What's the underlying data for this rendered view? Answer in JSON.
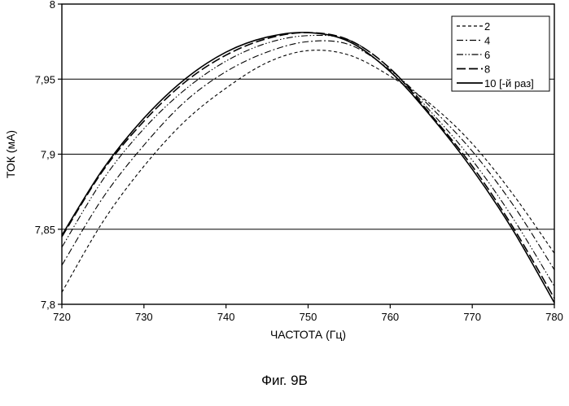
{
  "chart_data": {
    "type": "line",
    "title": "",
    "xlabel": "ЧАСТОТА (Гц)",
    "ylabel": "ТОК (мА)",
    "xlim": [
      720,
      780
    ],
    "ylim": [
      7.8,
      8.0
    ],
    "xticks": [
      720,
      730,
      740,
      750,
      760,
      770,
      780
    ],
    "xtick_labels": [
      "720",
      "730",
      "740",
      "750",
      "760",
      "770",
      "780"
    ],
    "yticks": [
      7.8,
      7.85,
      7.9,
      7.95,
      8.0
    ],
    "ytick_labels": [
      "7,8",
      "7,85",
      "7,9",
      "7,95",
      "8"
    ],
    "grid": "horizontal",
    "legend_position": "top-right",
    "series": [
      {
        "name": "2",
        "style": "dashed",
        "x": [
          720,
          725,
          730,
          735,
          740,
          745,
          750,
          755,
          760,
          765,
          770,
          775,
          780
        ],
        "y": [
          7.808,
          7.855,
          7.892,
          7.922,
          7.944,
          7.961,
          7.969,
          7.966,
          7.952,
          7.933,
          7.907,
          7.873,
          7.834
        ]
      },
      {
        "name": "4",
        "style": "dash-dot",
        "x": [
          720,
          725,
          730,
          735,
          740,
          745,
          750,
          755,
          760,
          765,
          770,
          775,
          780
        ],
        "y": [
          7.826,
          7.871,
          7.906,
          7.935,
          7.955,
          7.968,
          7.975,
          7.973,
          7.956,
          7.931,
          7.902,
          7.866,
          7.823
        ]
      },
      {
        "name": "6",
        "style": "dash-dot-dot",
        "x": [
          720,
          725,
          730,
          735,
          740,
          745,
          750,
          755,
          760,
          765,
          770,
          775,
          780
        ],
        "y": [
          7.838,
          7.883,
          7.917,
          7.943,
          7.962,
          7.974,
          7.979,
          7.976,
          7.957,
          7.928,
          7.896,
          7.857,
          7.812
        ]
      },
      {
        "name": "8",
        "style": "long-dash",
        "x": [
          720,
          725,
          730,
          735,
          740,
          745,
          750,
          755,
          760,
          765,
          770,
          775,
          780
        ],
        "y": [
          7.845,
          7.889,
          7.922,
          7.948,
          7.966,
          7.977,
          7.981,
          7.976,
          7.957,
          7.926,
          7.892,
          7.851,
          7.804
        ]
      },
      {
        "name": "10 [-й раз]",
        "style": "solid",
        "x": [
          720,
          725,
          730,
          735,
          740,
          745,
          750,
          755,
          760,
          765,
          770,
          775,
          780
        ],
        "y": [
          7.846,
          7.89,
          7.924,
          7.95,
          7.968,
          7.978,
          7.981,
          7.975,
          7.955,
          7.925,
          7.89,
          7.849,
          7.801
        ]
      }
    ]
  },
  "caption": "Фиг. 9B"
}
